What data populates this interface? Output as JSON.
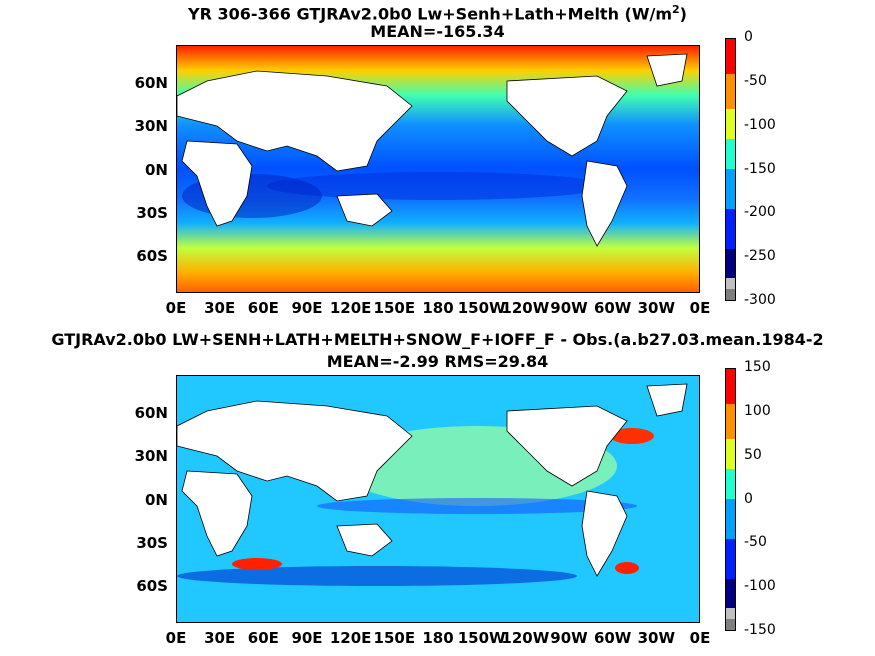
{
  "chart_data": [
    {
      "type": "heatmap",
      "title": "YR 306-366 GTJRAv2.0b0 Lw+Senh+Lath+Melth (W/m",
      "title_sup": "2",
      "title_end": ")",
      "subtitle": "MEAN=-165.34",
      "xlabel": "",
      "ylabel": "",
      "x_tick_labels": [
        "0E",
        "30E",
        "60E",
        "90E",
        "120E",
        "150E",
        "180",
        "150W",
        "120W",
        "90W",
        "60W",
        "30W",
        "0E"
      ],
      "y_tick_labels": [
        "60N",
        "30N",
        "0N",
        "30S",
        "60S"
      ],
      "colorbar_ticks": [
        "0",
        "-50",
        "-100",
        "-150",
        "-200",
        "-250",
        "-300"
      ],
      "colorbar_range": [
        -300,
        0
      ],
      "colormap": [
        "#7f7f7f",
        "#c0c0c0",
        "#00007f",
        "#0000ff",
        "#0080ff",
        "#00ffff",
        "#80ff80",
        "#ffff00",
        "#ff8000",
        "#ff0000"
      ]
    },
    {
      "type": "heatmap",
      "title": "GTJRAv2.0b0 LW+SENH+LATH+MELTH+SNOW_F+IOFF_F - Obs.(a.b27.03.mean.1984-2",
      "subtitle": "MEAN=-2.99 RMS=29.84",
      "xlabel": "",
      "ylabel": "",
      "x_tick_labels": [
        "0E",
        "30E",
        "60E",
        "90E",
        "120E",
        "150E",
        "180",
        "150W",
        "120W",
        "90W",
        "60W",
        "30W",
        "0E"
      ],
      "y_tick_labels": [
        "60N",
        "30N",
        "0N",
        "30S",
        "60S"
      ],
      "colorbar_ticks": [
        "150",
        "100",
        "50",
        "0",
        "-50",
        "-100",
        "-150"
      ],
      "colorbar_range": [
        -150,
        150
      ],
      "colormap": [
        "#7f7f7f",
        "#c0c0c0",
        "#00007f",
        "#0000ff",
        "#0080ff",
        "#00ffff",
        "#80ff80",
        "#ffff00",
        "#ff8000",
        "#ff0000"
      ]
    }
  ]
}
